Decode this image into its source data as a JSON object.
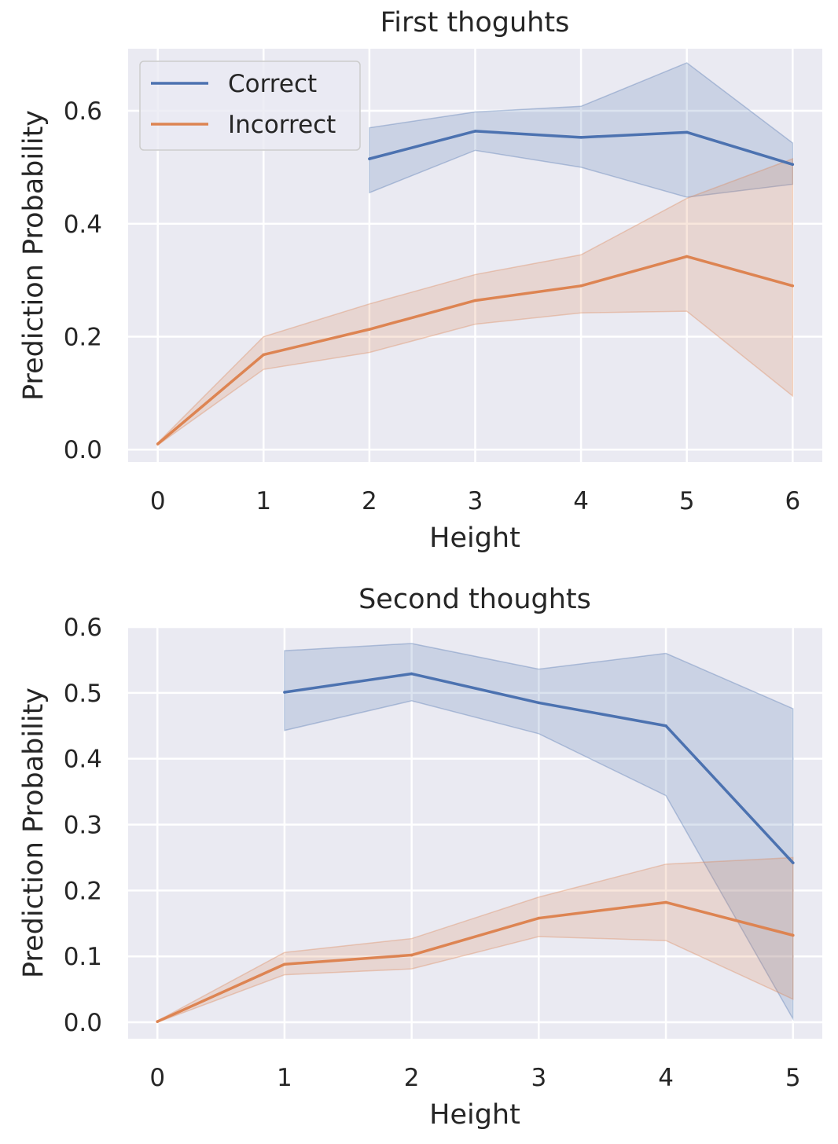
{
  "colors": {
    "correct": "#4c72b0",
    "incorrect": "#dd8452",
    "axes_bg": "#eaeaf2",
    "grid": "#ffffff",
    "text": "#262626"
  },
  "chart_data": [
    {
      "type": "line",
      "title": "First thoguhts",
      "xlabel": "Height",
      "ylabel": "Prediction Probability",
      "xlim": [
        -0.28,
        6.28
      ],
      "ylim": [
        -0.022,
        0.71
      ],
      "xticks": [
        0,
        1,
        2,
        3,
        4,
        5,
        6
      ],
      "yticks": [
        0.0,
        0.2,
        0.4,
        0.6
      ],
      "ytick_labels": [
        "0.0",
        "0.2",
        "0.4",
        "0.6"
      ],
      "grid": true,
      "legend": {
        "placement": "upper-left",
        "entries": [
          "Correct",
          "Incorrect"
        ]
      },
      "series": [
        {
          "name": "Correct",
          "x": [
            2,
            3,
            4,
            5,
            6
          ],
          "y": [
            0.515,
            0.564,
            0.553,
            0.562,
            0.505
          ],
          "ci_lower": [
            0.455,
            0.53,
            0.5,
            0.447,
            0.47
          ],
          "ci_upper": [
            0.57,
            0.598,
            0.608,
            0.685,
            0.543
          ]
        },
        {
          "name": "Incorrect",
          "x": [
            0,
            1,
            2,
            3,
            4,
            5,
            6
          ],
          "y": [
            0.01,
            0.168,
            0.213,
            0.264,
            0.29,
            0.342,
            0.29
          ],
          "ci_lower": [
            0.008,
            0.142,
            0.172,
            0.222,
            0.242,
            0.245,
            0.095
          ],
          "ci_upper": [
            0.012,
            0.2,
            0.258,
            0.31,
            0.345,
            0.445,
            0.515
          ]
        }
      ]
    },
    {
      "type": "line",
      "title": "Second thoughts",
      "xlabel": "Height",
      "ylabel": "Prediction Probability",
      "xlim": [
        -0.23,
        5.23
      ],
      "ylim": [
        -0.025,
        0.6
      ],
      "xticks": [
        0,
        1,
        2,
        3,
        4,
        5
      ],
      "yticks": [
        0.0,
        0.1,
        0.2,
        0.3,
        0.4,
        0.5,
        0.6
      ],
      "ytick_labels": [
        "0.0",
        "0.1",
        "0.2",
        "0.3",
        "0.4",
        "0.5",
        "0.6"
      ],
      "grid": true,
      "series": [
        {
          "name": "Correct",
          "x": [
            1,
            2,
            3,
            4,
            5
          ],
          "y": [
            0.501,
            0.529,
            0.485,
            0.45,
            0.242
          ],
          "ci_lower": [
            0.443,
            0.488,
            0.438,
            0.344,
            0.005
          ],
          "ci_upper": [
            0.564,
            0.575,
            0.536,
            0.56,
            0.476
          ]
        },
        {
          "name": "Incorrect",
          "x": [
            0,
            1,
            2,
            3,
            4,
            5
          ],
          "y": [
            0.001,
            0.088,
            0.102,
            0.158,
            0.182,
            0.132
          ],
          "ci_lower": [
            0.0,
            0.072,
            0.081,
            0.13,
            0.124,
            0.035
          ],
          "ci_upper": [
            0.002,
            0.106,
            0.127,
            0.19,
            0.24,
            0.25
          ]
        }
      ]
    }
  ]
}
